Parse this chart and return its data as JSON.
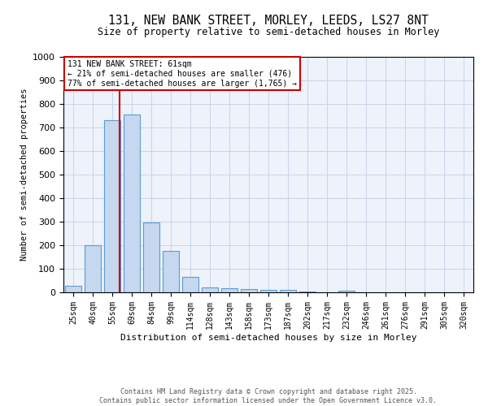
{
  "title_line1": "131, NEW BANK STREET, MORLEY, LEEDS, LS27 8NT",
  "title_line2": "Size of property relative to semi-detached houses in Morley",
  "xlabel": "Distribution of semi-detached houses by size in Morley",
  "ylabel": "Number of semi-detached properties",
  "categories": [
    "25sqm",
    "40sqm",
    "55sqm",
    "69sqm",
    "84sqm",
    "99sqm",
    "114sqm",
    "128sqm",
    "143sqm",
    "158sqm",
    "173sqm",
    "187sqm",
    "202sqm",
    "217sqm",
    "232sqm",
    "246sqm",
    "261sqm",
    "276sqm",
    "291sqm",
    "305sqm",
    "320sqm"
  ],
  "values": [
    28,
    200,
    730,
    755,
    295,
    175,
    65,
    20,
    18,
    13,
    10,
    12,
    5,
    0,
    8,
    0,
    0,
    0,
    0,
    0,
    0
  ],
  "bar_color": "#c5d8f0",
  "bar_edge_color": "#5b9bd5",
  "ylim": [
    0,
    1000
  ],
  "yticks": [
    0,
    100,
    200,
    300,
    400,
    500,
    600,
    700,
    800,
    900,
    1000
  ],
  "vline_x": 2.38,
  "vline_color": "#cc0000",
  "annotation_text": "131 NEW BANK STREET: 61sqm\n← 21% of semi-detached houses are smaller (476)\n77% of semi-detached houses are larger (1,765) →",
  "annotation_box_color": "#cc0000",
  "footer_line1": "Contains HM Land Registry data © Crown copyright and database right 2025.",
  "footer_line2": "Contains public sector information licensed under the Open Government Licence v3.0.",
  "background_color": "#eef2fa",
  "grid_color": "#c8d4e8"
}
